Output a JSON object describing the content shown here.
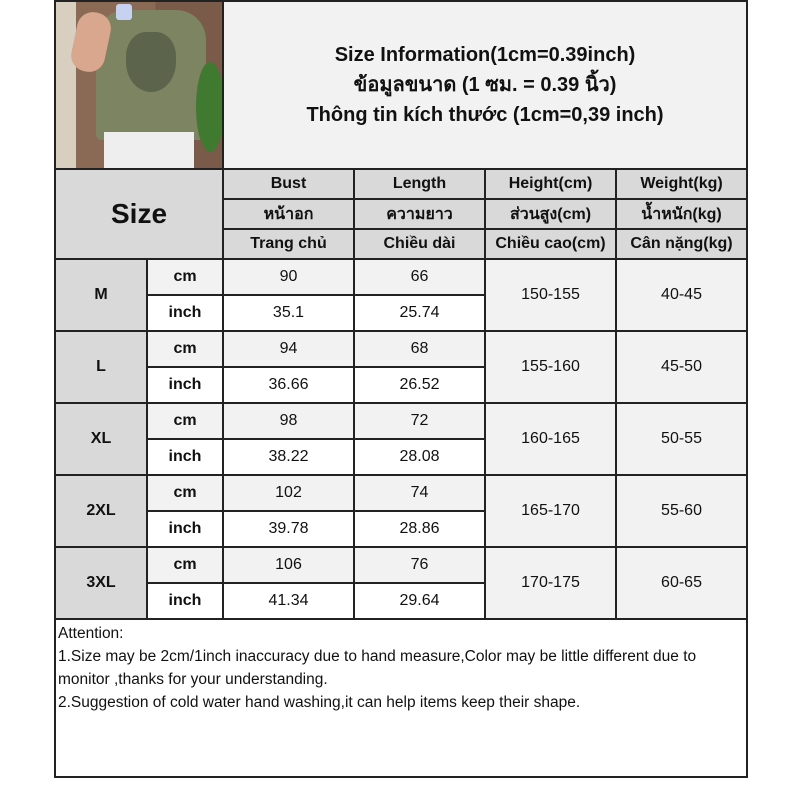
{
  "title": {
    "line1": "Size Information(1cm=0.39inch)",
    "line2": "ข้อมูลขนาด (1 ซม. = 0.39 นิ้ว)",
    "line3": "Thông tin kích thước (1cm=0,39 inch)"
  },
  "header": {
    "size_label": "Size",
    "columns": [
      {
        "en": "Bust",
        "th": "หน้าอก",
        "vi": "Trang chủ"
      },
      {
        "en": "Length",
        "th": "ความยาว",
        "vi": "Chiều dài"
      },
      {
        "en": "Height(cm)",
        "th": "ส่วนสูง(cm)",
        "vi": "Chiều cao(cm)"
      },
      {
        "en": "Weight(kg)",
        "th": "น้ำหนัก(kg)",
        "vi": "Cân nặng(kg)"
      }
    ]
  },
  "units": {
    "cm": "cm",
    "inch": "inch"
  },
  "sizes": [
    {
      "size": "M",
      "bust_cm": "90",
      "length_cm": "66",
      "bust_inch": "35.1",
      "length_inch": "25.74",
      "height": "150-155",
      "weight": "40-45"
    },
    {
      "size": "L",
      "bust_cm": "94",
      "length_cm": "68",
      "bust_inch": "36.66",
      "length_inch": "26.52",
      "height": "155-160",
      "weight": "45-50"
    },
    {
      "size": "XL",
      "bust_cm": "98",
      "length_cm": "72",
      "bust_inch": "38.22",
      "length_inch": "28.08",
      "height": "160-165",
      "weight": "50-55"
    },
    {
      "size": "2XL",
      "bust_cm": "102",
      "length_cm": "74",
      "bust_inch": "39.78",
      "length_inch": "28.86",
      "height": "165-170",
      "weight": "55-60"
    },
    {
      "size": "3XL",
      "bust_cm": "106",
      "length_cm": "76",
      "bust_inch": "41.34",
      "length_inch": "29.64",
      "height": "170-175",
      "weight": "60-65"
    }
  ],
  "attention": {
    "heading": "Attention:",
    "note1": "1.Size may be 2cm/1inch inaccuracy due to hand measure,Color may be little different due to monitor ,thanks for your understanding.",
    "note2": "2.Suggestion of cold water hand washing,it can help items keep their shape."
  }
}
